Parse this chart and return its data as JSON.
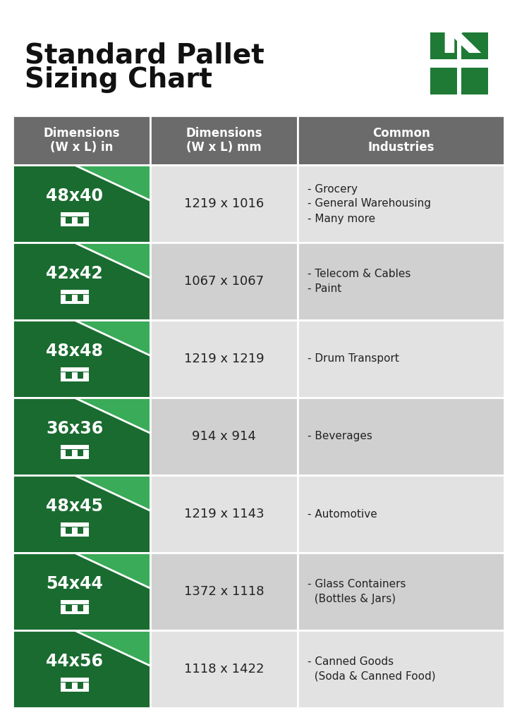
{
  "title_line1": "Standard Pallet",
  "title_line2": "Sizing Chart",
  "title_fontsize": 28,
  "bg_color": "#ffffff",
  "header_bg": "#6b6b6b",
  "header_text_color": "#ffffff",
  "row_bg_light": "#e8e8e8",
  "row_bg_dark": "#d4d4d4",
  "green_dark": "#1a6b30",
  "green_light": "#2d8a45",
  "green_triangle": "#3aab58",
  "col1_header": "Dimensions\n(W x L) in",
  "col2_header": "Dimensions\n(W x L) mm",
  "col3_header": "Common\nIndustries",
  "rows": [
    {
      "dim_in": "48x40",
      "dim_mm": "1219 x 1016",
      "industries": "- Grocery\n- General Warehousing\n- Many more"
    },
    {
      "dim_in": "42x42",
      "dim_mm": "1067 x 1067",
      "industries": "- Telecom & Cables\n- Paint"
    },
    {
      "dim_in": "48x48",
      "dim_mm": "1219 x 1219",
      "industries": "- Drum Transport"
    },
    {
      "dim_in": "36x36",
      "dim_mm": "914 x 914",
      "industries": "- Beverages"
    },
    {
      "dim_in": "48x45",
      "dim_mm": "1219 x 1143",
      "industries": "- Automotive"
    },
    {
      "dim_in": "54x44",
      "dim_mm": "1372 x 1118",
      "industries": "- Glass Containers\n  (Bottles & Jars)"
    },
    {
      "dim_in": "44x56",
      "dim_mm": "1118 x 1422",
      "industries": "- Canned Goods\n  (Soda & Canned Food)"
    }
  ]
}
